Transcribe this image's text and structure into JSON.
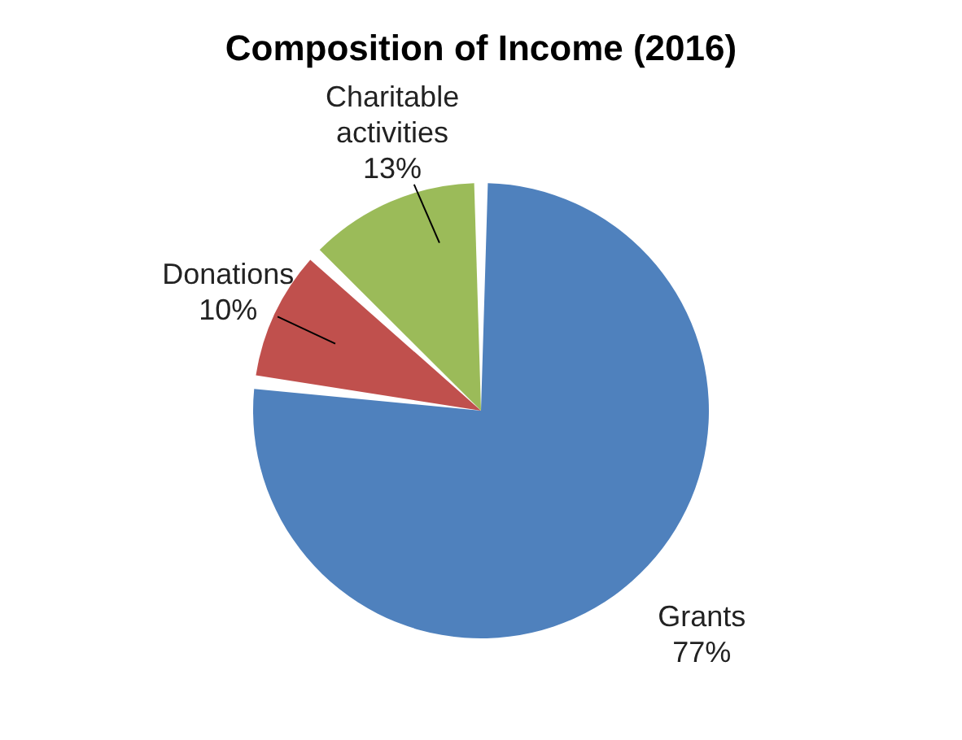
{
  "chart_data": {
    "type": "pie",
    "title": "Composition of Income (2016)",
    "categories": [
      "Grants",
      "Donations",
      "Charitable activities"
    ],
    "values": [
      77,
      10,
      13
    ],
    "colors": [
      "#4f81bd",
      "#c0504d",
      "#9bbb59"
    ],
    "value_labels": [
      "77%",
      "10%",
      "13%"
    ]
  }
}
